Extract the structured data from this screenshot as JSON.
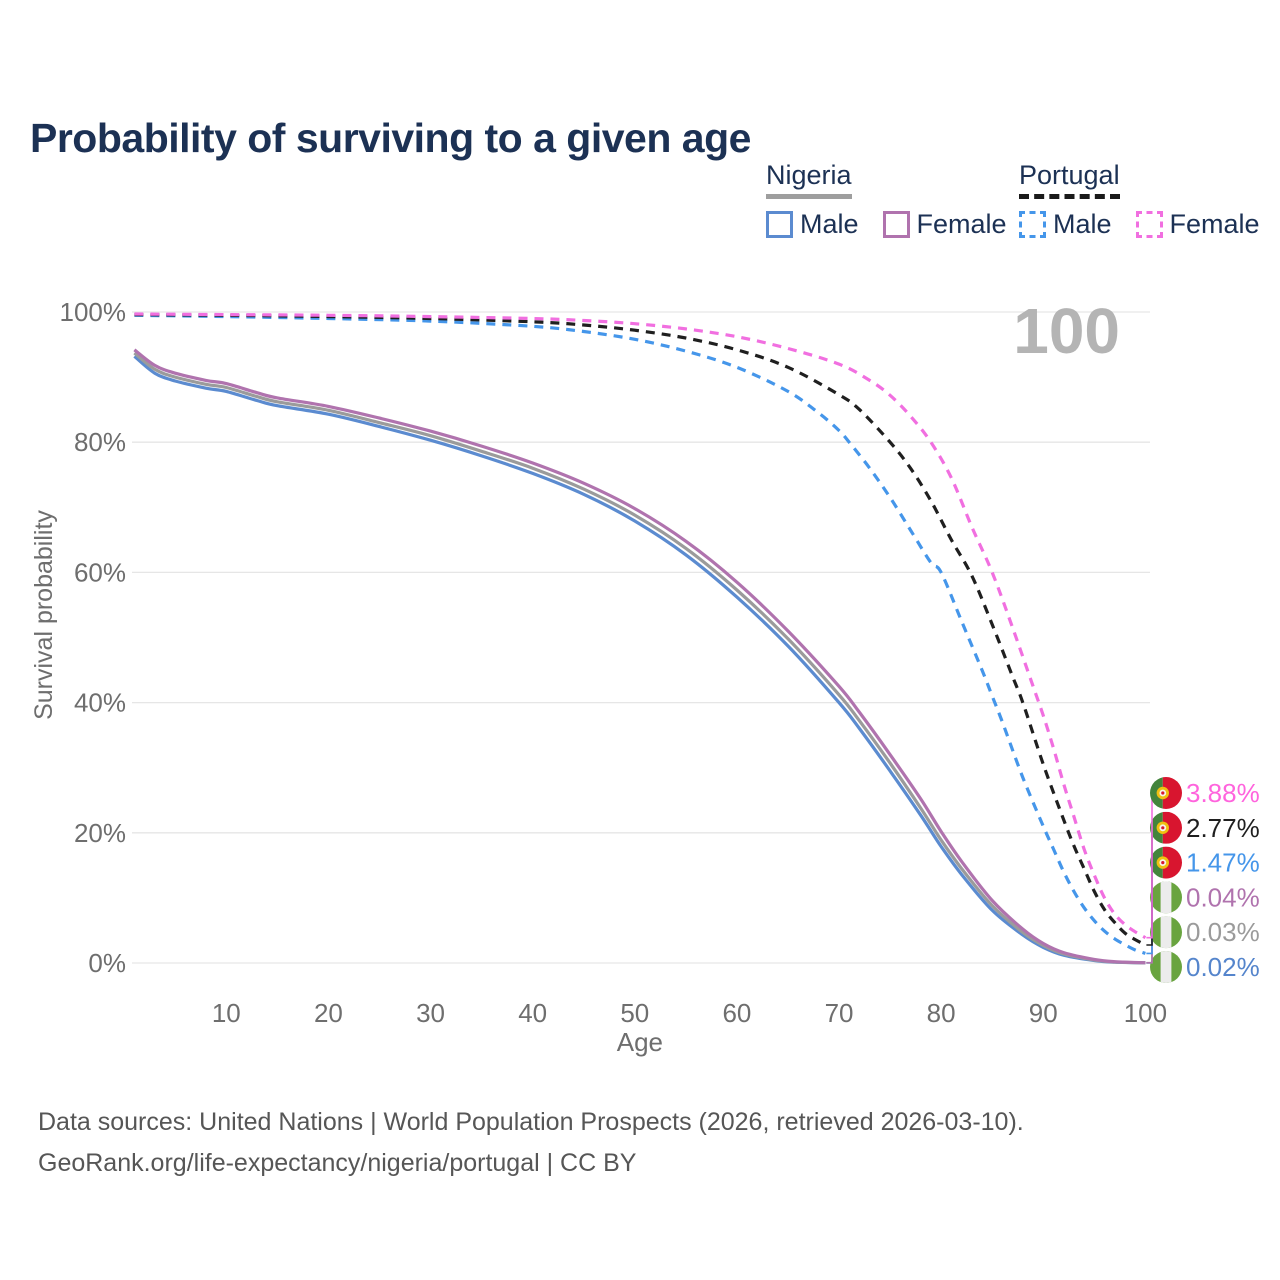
{
  "page": {
    "title": "Probability of surviving to a given age"
  },
  "legend": {
    "groups": [
      {
        "title": "Nigeria",
        "line_style": "solid",
        "rule_color": "#9e9e9e",
        "items": [
          {
            "label": "Male",
            "color": "#5b8bd0"
          },
          {
            "label": "Female",
            "color": "#b073ae"
          }
        ]
      },
      {
        "title": "Portugal",
        "line_style": "dashed",
        "rule_color": "#1a1a1a",
        "items": [
          {
            "label": "Male",
            "color": "#4596ea"
          },
          {
            "label": "Female",
            "color": "#f16fe0"
          }
        ]
      }
    ]
  },
  "chart_data": {
    "type": "line",
    "title": "Probability of surviving to a given age",
    "xlabel": "Age",
    "ylabel": "Survival probability",
    "xlim": [
      1,
      100
    ],
    "ylim": [
      0,
      100
    ],
    "x_ticks": [
      10,
      20,
      30,
      40,
      50,
      60,
      70,
      80,
      90,
      100
    ],
    "y_ticks": [
      {
        "value": 0,
        "label": "0%"
      },
      {
        "value": 20,
        "label": "20%"
      },
      {
        "value": 40,
        "label": "40%"
      },
      {
        "value": 60,
        "label": "60%"
      },
      {
        "value": 80,
        "label": "80%"
      },
      {
        "value": 100,
        "label": "100%"
      }
    ],
    "grid": true,
    "watermark": "100",
    "watermark_color": "#b4b4b4",
    "grid_color": "#e6e6e6",
    "axis_text_color": "#6e6e6e",
    "series": [
      {
        "id": "nigeria-male",
        "country": "Nigeria",
        "sex": "male",
        "color": "#5b8bd0",
        "dashed": false,
        "end_label": "0.02%",
        "end_label_color": "#5585cc",
        "flag": "nigeria",
        "label_row": 5,
        "points": [
          [
            1,
            93.2
          ],
          [
            3,
            90.6
          ],
          [
            5,
            89.4
          ],
          [
            8,
            88.3
          ],
          [
            10,
            87.8
          ],
          [
            13,
            86.4
          ],
          [
            15,
            85.6
          ],
          [
            20,
            84.3
          ],
          [
            25,
            82.4
          ],
          [
            30,
            80.3
          ],
          [
            35,
            77.9
          ],
          [
            40,
            75.2
          ],
          [
            45,
            72.0
          ],
          [
            50,
            67.9
          ],
          [
            55,
            62.7
          ],
          [
            60,
            56.2
          ],
          [
            65,
            48.7
          ],
          [
            70,
            40.0
          ],
          [
            72,
            36.0
          ],
          [
            75,
            29.5
          ],
          [
            78,
            22.7
          ],
          [
            80,
            17.9
          ],
          [
            82,
            13.6
          ],
          [
            85,
            8.1
          ],
          [
            88,
            4.3
          ],
          [
            90,
            2.4
          ],
          [
            92,
            1.2
          ],
          [
            95,
            0.38
          ],
          [
            97,
            0.13
          ],
          [
            100,
            0.02
          ]
        ]
      },
      {
        "id": "nigeria-both",
        "country": "Nigeria",
        "sex": "both",
        "color": "#9b9b9b",
        "dashed": false,
        "end_label": "0.03%",
        "end_label_color": "#9b9b9b",
        "flag": "nigeria",
        "label_row": 4,
        "points": [
          [
            1,
            93.7
          ],
          [
            3,
            91.2
          ],
          [
            5,
            90.0
          ],
          [
            8,
            88.9
          ],
          [
            10,
            88.4
          ],
          [
            13,
            87.0
          ],
          [
            15,
            86.2
          ],
          [
            20,
            84.9
          ],
          [
            25,
            83.0
          ],
          [
            30,
            81.0
          ],
          [
            35,
            78.6
          ],
          [
            40,
            76.0
          ],
          [
            45,
            72.8
          ],
          [
            50,
            68.8
          ],
          [
            55,
            63.7
          ],
          [
            60,
            57.3
          ],
          [
            65,
            49.8
          ],
          [
            70,
            41.2
          ],
          [
            72,
            37.2
          ],
          [
            75,
            30.7
          ],
          [
            78,
            23.8
          ],
          [
            80,
            18.9
          ],
          [
            82,
            14.5
          ],
          [
            85,
            8.8
          ],
          [
            88,
            4.7
          ],
          [
            90,
            2.7
          ],
          [
            92,
            1.4
          ],
          [
            95,
            0.45
          ],
          [
            97,
            0.16
          ],
          [
            100,
            0.03
          ]
        ]
      },
      {
        "id": "nigeria-female",
        "country": "Nigeria",
        "sex": "female",
        "color": "#b073ae",
        "dashed": false,
        "end_label": "0.04%",
        "end_label_color": "#b073ae",
        "flag": "nigeria",
        "label_row": 3,
        "points": [
          [
            1,
            94.2
          ],
          [
            3,
            91.8
          ],
          [
            5,
            90.6
          ],
          [
            8,
            89.5
          ],
          [
            10,
            89.0
          ],
          [
            13,
            87.6
          ],
          [
            15,
            86.8
          ],
          [
            20,
            85.5
          ],
          [
            25,
            83.7
          ],
          [
            30,
            81.7
          ],
          [
            35,
            79.4
          ],
          [
            40,
            76.8
          ],
          [
            45,
            73.7
          ],
          [
            50,
            69.8
          ],
          [
            55,
            64.8
          ],
          [
            60,
            58.5
          ],
          [
            65,
            51.0
          ],
          [
            70,
            42.5
          ],
          [
            72,
            38.5
          ],
          [
            75,
            32.0
          ],
          [
            78,
            25.2
          ],
          [
            80,
            20.2
          ],
          [
            82,
            15.6
          ],
          [
            85,
            9.6
          ],
          [
            88,
            5.2
          ],
          [
            90,
            3.0
          ],
          [
            92,
            1.6
          ],
          [
            95,
            0.55
          ],
          [
            97,
            0.2
          ],
          [
            100,
            0.04
          ]
        ]
      },
      {
        "id": "portugal-male",
        "country": "Portugal",
        "sex": "male",
        "color": "#4596ea",
        "dashed": true,
        "end_label": "1.47%",
        "end_label_color": "#4596ea",
        "flag": "portugal",
        "label_row": 2,
        "points": [
          [
            1,
            99.5
          ],
          [
            10,
            99.3
          ],
          [
            20,
            99.0
          ],
          [
            30,
            98.6
          ],
          [
            40,
            97.8
          ],
          [
            45,
            97.0
          ],
          [
            50,
            95.8
          ],
          [
            55,
            94.0
          ],
          [
            60,
            91.5
          ],
          [
            65,
            87.8
          ],
          [
            68,
            84.5
          ],
          [
            70,
            81.8
          ],
          [
            71,
            80.0
          ],
          [
            73,
            76.0
          ],
          [
            75,
            71.5
          ],
          [
            77,
            66.5
          ],
          [
            79,
            61.5
          ],
          [
            80,
            60.0
          ],
          [
            82,
            52.5
          ],
          [
            84,
            45.0
          ],
          [
            85,
            41.0
          ],
          [
            86,
            37.0
          ],
          [
            88,
            28.5
          ],
          [
            90,
            21.0
          ],
          [
            91,
            17.5
          ],
          [
            92,
            14.0
          ],
          [
            93,
            11.0
          ],
          [
            94,
            8.5
          ],
          [
            95,
            6.5
          ],
          [
            96,
            4.9
          ],
          [
            97,
            3.7
          ],
          [
            98,
            2.8
          ],
          [
            99,
            2.0
          ],
          [
            100,
            1.47
          ]
        ]
      },
      {
        "id": "portugal-both",
        "country": "Portugal",
        "sex": "both",
        "color": "#1f1f1f",
        "dashed": true,
        "end_label": "2.77%",
        "end_label_color": "#1f1f1f",
        "flag": "portugal",
        "label_row": 1,
        "points": [
          [
            1,
            99.6
          ],
          [
            10,
            99.5
          ],
          [
            20,
            99.3
          ],
          [
            30,
            99.0
          ],
          [
            40,
            98.5
          ],
          [
            45,
            98.0
          ],
          [
            50,
            97.2
          ],
          [
            55,
            96.0
          ],
          [
            60,
            94.2
          ],
          [
            65,
            91.5
          ],
          [
            70,
            87.3
          ],
          [
            72,
            85.0
          ],
          [
            75,
            80.0
          ],
          [
            77,
            76.0
          ],
          [
            79,
            71.0
          ],
          [
            81,
            65.0
          ],
          [
            83,
            59.5
          ],
          [
            85,
            52.0
          ],
          [
            87,
            44.0
          ],
          [
            88,
            40.0
          ],
          [
            90,
            30.5
          ],
          [
            92,
            22.0
          ],
          [
            93,
            18.0
          ],
          [
            94,
            14.5
          ],
          [
            95,
            11.0
          ],
          [
            96,
            8.2
          ],
          [
            97,
            6.2
          ],
          [
            98,
            4.6
          ],
          [
            99,
            3.6
          ],
          [
            100,
            2.77
          ]
        ]
      },
      {
        "id": "portugal-female",
        "country": "Portugal",
        "sex": "female",
        "color": "#f16fe0",
        "dashed": true,
        "end_label": "3.88%",
        "end_label_color": "#ff64dd",
        "flag": "portugal",
        "label_row": 0,
        "points": [
          [
            1,
            99.7
          ],
          [
            10,
            99.6
          ],
          [
            20,
            99.5
          ],
          [
            30,
            99.3
          ],
          [
            40,
            99.0
          ],
          [
            45,
            98.7
          ],
          [
            50,
            98.2
          ],
          [
            55,
            97.4
          ],
          [
            60,
            96.2
          ],
          [
            65,
            94.4
          ],
          [
            70,
            92.0
          ],
          [
            73,
            89.5
          ],
          [
            75,
            87.2
          ],
          [
            77,
            84.0
          ],
          [
            79,
            80.0
          ],
          [
            81,
            74.5
          ],
          [
            83,
            67.0
          ],
          [
            85,
            60.0
          ],
          [
            87,
            51.5
          ],
          [
            89,
            42.5
          ],
          [
            90,
            38.0
          ],
          [
            91,
            33.0
          ],
          [
            92,
            27.5
          ],
          [
            93,
            22.5
          ],
          [
            94,
            17.5
          ],
          [
            95,
            13.5
          ],
          [
            96,
            10.0
          ],
          [
            97,
            7.5
          ],
          [
            98,
            5.9
          ],
          [
            99,
            4.8
          ],
          [
            100,
            3.88
          ]
        ]
      }
    ],
    "flag_colors": {
      "nigeria_green": "#69a43f",
      "nigeria_white": "#ececec",
      "portugal_green": "#43843c",
      "portugal_red": "#d8152f",
      "portugal_emblem_yellow": "#f0c011",
      "portugal_emblem_inner": "#f7f2ea"
    }
  },
  "footer": {
    "line1": "Data sources: United Nations | World Population Prospects (2026, retrieved 2026-03-10).",
    "line2": "GeoRank.org/life-expectancy/nigeria/portugal | CC BY"
  }
}
